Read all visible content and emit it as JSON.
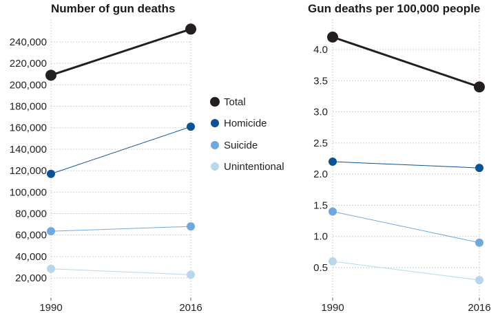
{
  "chart_data": [
    {
      "type": "line",
      "title": "Number of gun deaths",
      "x": [
        "1990",
        "2016"
      ],
      "ylim": [
        0,
        260000
      ],
      "yticks": [
        "20,000",
        "40,000",
        "60,000",
        "80,000",
        "100,000",
        "120,000",
        "140,000",
        "160,000",
        "180,000",
        "200,000",
        "220,000",
        "240,000"
      ],
      "ytick_values": [
        20000,
        40000,
        60000,
        80000,
        100000,
        120000,
        140000,
        160000,
        180000,
        200000,
        220000,
        240000
      ],
      "series": [
        {
          "name": "Total",
          "values": [
            209000,
            252000
          ],
          "color": "#231f20"
        },
        {
          "name": "Homicide",
          "values": [
            117000,
            161000
          ],
          "color": "#0b5394"
        },
        {
          "name": "Suicide",
          "values": [
            63500,
            68000
          ],
          "color": "#6fa8dc"
        },
        {
          "name": "Unintentional",
          "values": [
            28500,
            23000
          ],
          "color": "#b7d7ea"
        }
      ]
    },
    {
      "type": "line",
      "title": "Gun deaths per 100,000 people",
      "x": [
        "1990",
        "2016"
      ],
      "ylim": [
        0,
        4.5
      ],
      "yticks": [
        "0.5",
        "1.0",
        "1.5",
        "2.0",
        "2.5",
        "3.0",
        "3.5",
        "4.0"
      ],
      "ytick_values": [
        0.5,
        1.0,
        1.5,
        2.0,
        2.5,
        3.0,
        3.5,
        4.0
      ],
      "series": [
        {
          "name": "Total",
          "values": [
            4.2,
            3.4
          ],
          "color": "#231f20"
        },
        {
          "name": "Homicide",
          "values": [
            2.2,
            2.1
          ],
          "color": "#0b5394"
        },
        {
          "name": "Suicide",
          "values": [
            1.4,
            0.9
          ],
          "color": "#6fa8dc"
        },
        {
          "name": "Unintentional",
          "values": [
            0.6,
            0.3
          ],
          "color": "#b7d7ea"
        }
      ]
    }
  ],
  "legend": {
    "placement": "center",
    "items": [
      {
        "label": "Total",
        "color": "#231f20"
      },
      {
        "label": "Homicide",
        "color": "#0b5394"
      },
      {
        "label": "Suicide",
        "color": "#6fa8dc"
      },
      {
        "label": "Unintentional",
        "color": "#b7d7ea"
      }
    ]
  }
}
